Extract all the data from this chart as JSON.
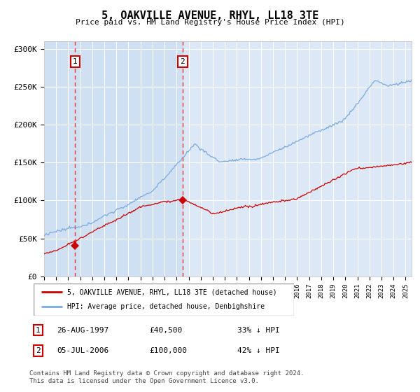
{
  "title": "5, OAKVILLE AVENUE, RHYL, LL18 3TE",
  "subtitle": "Price paid vs. HM Land Registry's House Price Index (HPI)",
  "background_color": "#ffffff",
  "plot_background": "#dce8f5",
  "sale1_price": 40500,
  "sale2_price": 100000,
  "ylim": [
    0,
    310000
  ],
  "yticks": [
    0,
    50000,
    100000,
    150000,
    200000,
    250000,
    300000
  ],
  "legend_line1": "5, OAKVILLE AVENUE, RHYL, LL18 3TE (detached house)",
  "legend_line2": "HPI: Average price, detached house, Denbighshire",
  "table_row1_date": "26-AUG-1997",
  "table_row1_price": "£40,500",
  "table_row1_hpi": "33% ↓ HPI",
  "table_row2_date": "05-JUL-2006",
  "table_row2_price": "£100,000",
  "table_row2_hpi": "42% ↓ HPI",
  "footnote": "Contains HM Land Registry data © Crown copyright and database right 2024.\nThis data is licensed under the Open Government Licence v3.0.",
  "sale_color": "#cc0000",
  "hpi_color": "#7aaadd",
  "dashed_line_color": "#ee3333",
  "marker_color": "#cc0000",
  "grid_color": "#ffffff",
  "label_box_color": "#cc0000"
}
